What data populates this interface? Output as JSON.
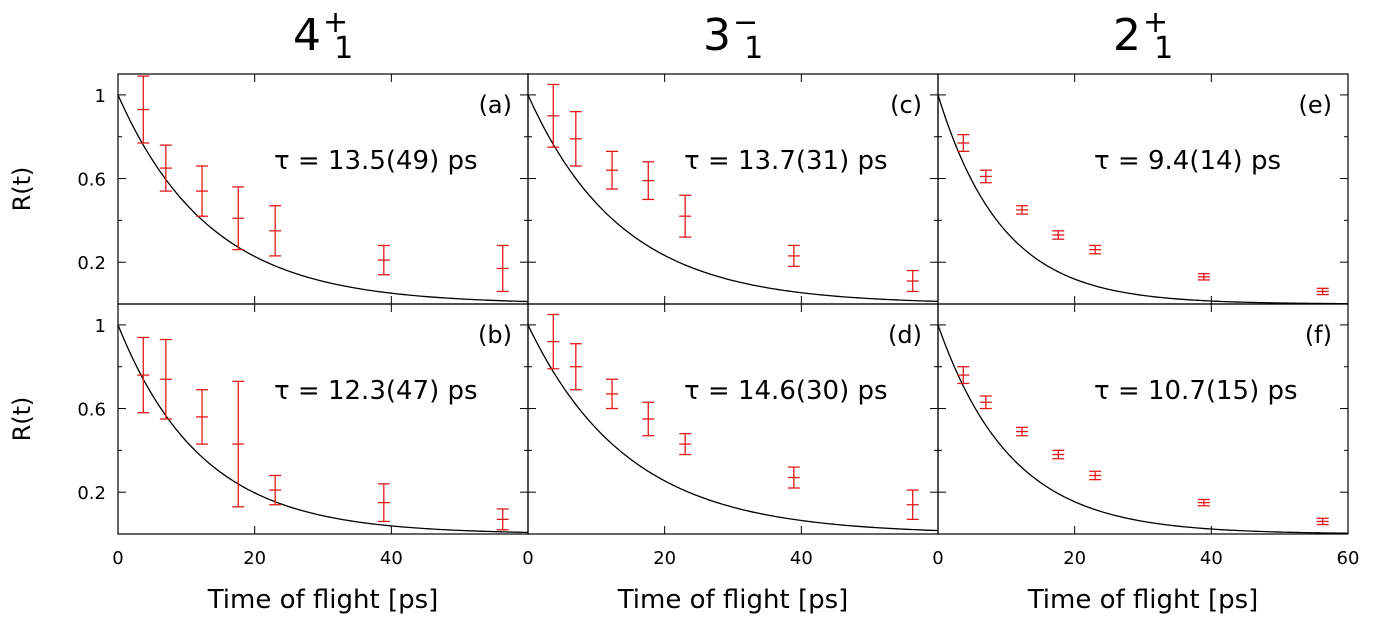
{
  "figure": {
    "y_axis_label": "R(t)",
    "x_axis_label": "Time of flight [ps]",
    "x_tick_labels": [
      "0",
      "20",
      "40"
    ],
    "x_tick_labels_last_column": [
      "0",
      "20",
      "40",
      "60"
    ],
    "y_tick_labels": [
      "1",
      "0.6",
      "0.2"
    ],
    "columns": [
      {
        "base": "4",
        "sup": "+",
        "sub": "1"
      },
      {
        "base": "3",
        "sup": "−",
        "sub": "1"
      },
      {
        "base": "2",
        "sup": "+",
        "sub": "1"
      }
    ],
    "colors": {
      "data": "#e31a1c",
      "fit": "#000000"
    }
  },
  "chart_data": [
    {
      "type": "scatter",
      "panel_label": "(a)",
      "tau_text": "τ = 13.5(49) ps",
      "state": "4+1",
      "row": 0,
      "col": 0,
      "tau": 13.5,
      "xlim": [
        0,
        60
      ],
      "ylim": [
        0.0,
        1.1
      ],
      "x": [
        3.7,
        7.0,
        12.3,
        17.6,
        23.0,
        38.9,
        56.3
      ],
      "y": [
        0.93,
        0.65,
        0.54,
        0.41,
        0.35,
        0.21,
        0.17
      ],
      "yerr": [
        0.16,
        0.11,
        0.12,
        0.15,
        0.12,
        0.07,
        0.11
      ],
      "fit": "exp(-t/13.5)"
    },
    {
      "type": "scatter",
      "panel_label": "(b)",
      "tau_text": "τ = 12.3(47) ps",
      "state": "4+1",
      "row": 1,
      "col": 0,
      "tau": 12.3,
      "xlim": [
        0,
        60
      ],
      "ylim": [
        0.0,
        1.1
      ],
      "x": [
        3.7,
        7.0,
        12.3,
        17.6,
        23.0,
        38.9,
        56.3
      ],
      "y": [
        0.76,
        0.74,
        0.56,
        0.43,
        0.21,
        0.15,
        0.07
      ],
      "yerr": [
        0.18,
        0.19,
        0.13,
        0.3,
        0.07,
        0.09,
        0.05
      ],
      "fit": "exp(-t/12.3)"
    },
    {
      "type": "scatter",
      "panel_label": "(c)",
      "tau_text": "τ = 13.7(31) ps",
      "state": "3-1",
      "row": 0,
      "col": 1,
      "tau": 13.7,
      "xlim": [
        0,
        60
      ],
      "ylim": [
        0.0,
        1.1
      ],
      "x": [
        3.7,
        7.0,
        12.3,
        17.6,
        23.0,
        38.9,
        56.3
      ],
      "y": [
        0.9,
        0.79,
        0.64,
        0.59,
        0.42,
        0.23,
        0.11
      ],
      "yerr": [
        0.15,
        0.13,
        0.09,
        0.09,
        0.1,
        0.05,
        0.05
      ],
      "fit": "exp(-t/13.7)"
    },
    {
      "type": "scatter",
      "panel_label": "(d)",
      "tau_text": "τ = 14.6(30) ps",
      "state": "3-1",
      "row": 1,
      "col": 1,
      "tau": 14.6,
      "xlim": [
        0,
        60
      ],
      "ylim": [
        0.0,
        1.1
      ],
      "x": [
        3.7,
        7.0,
        12.3,
        17.6,
        23.0,
        38.9,
        56.3
      ],
      "y": [
        0.92,
        0.8,
        0.67,
        0.55,
        0.43,
        0.27,
        0.14
      ],
      "yerr": [
        0.13,
        0.11,
        0.07,
        0.08,
        0.05,
        0.05,
        0.07
      ],
      "fit": "exp(-t/14.6)"
    },
    {
      "type": "scatter",
      "panel_label": "(e)",
      "tau_text": "τ = 9.4(14) ps",
      "state": "2+1",
      "row": 0,
      "col": 2,
      "tau": 9.4,
      "xlim": [
        0,
        60
      ],
      "ylim": [
        0.0,
        1.1
      ],
      "x": [
        3.7,
        7.0,
        12.3,
        17.6,
        23.0,
        38.9,
        56.3
      ],
      "y": [
        0.77,
        0.61,
        0.45,
        0.33,
        0.26,
        0.13,
        0.06
      ],
      "yerr": [
        0.04,
        0.03,
        0.02,
        0.02,
        0.02,
        0.015,
        0.015
      ],
      "fit": "exp(-t/9.4)"
    },
    {
      "type": "scatter",
      "panel_label": "(f)",
      "tau_text": "τ = 10.7(15) ps",
      "state": "2+1",
      "row": 1,
      "col": 2,
      "tau": 10.7,
      "xlim": [
        0,
        60
      ],
      "ylim": [
        0.0,
        1.1
      ],
      "x": [
        3.7,
        7.0,
        12.3,
        17.6,
        23.0,
        38.9,
        56.3
      ],
      "y": [
        0.76,
        0.63,
        0.49,
        0.38,
        0.28,
        0.15,
        0.06
      ],
      "yerr": [
        0.04,
        0.03,
        0.02,
        0.02,
        0.02,
        0.015,
        0.015
      ],
      "fit": "exp(-t/10.7)"
    }
  ]
}
